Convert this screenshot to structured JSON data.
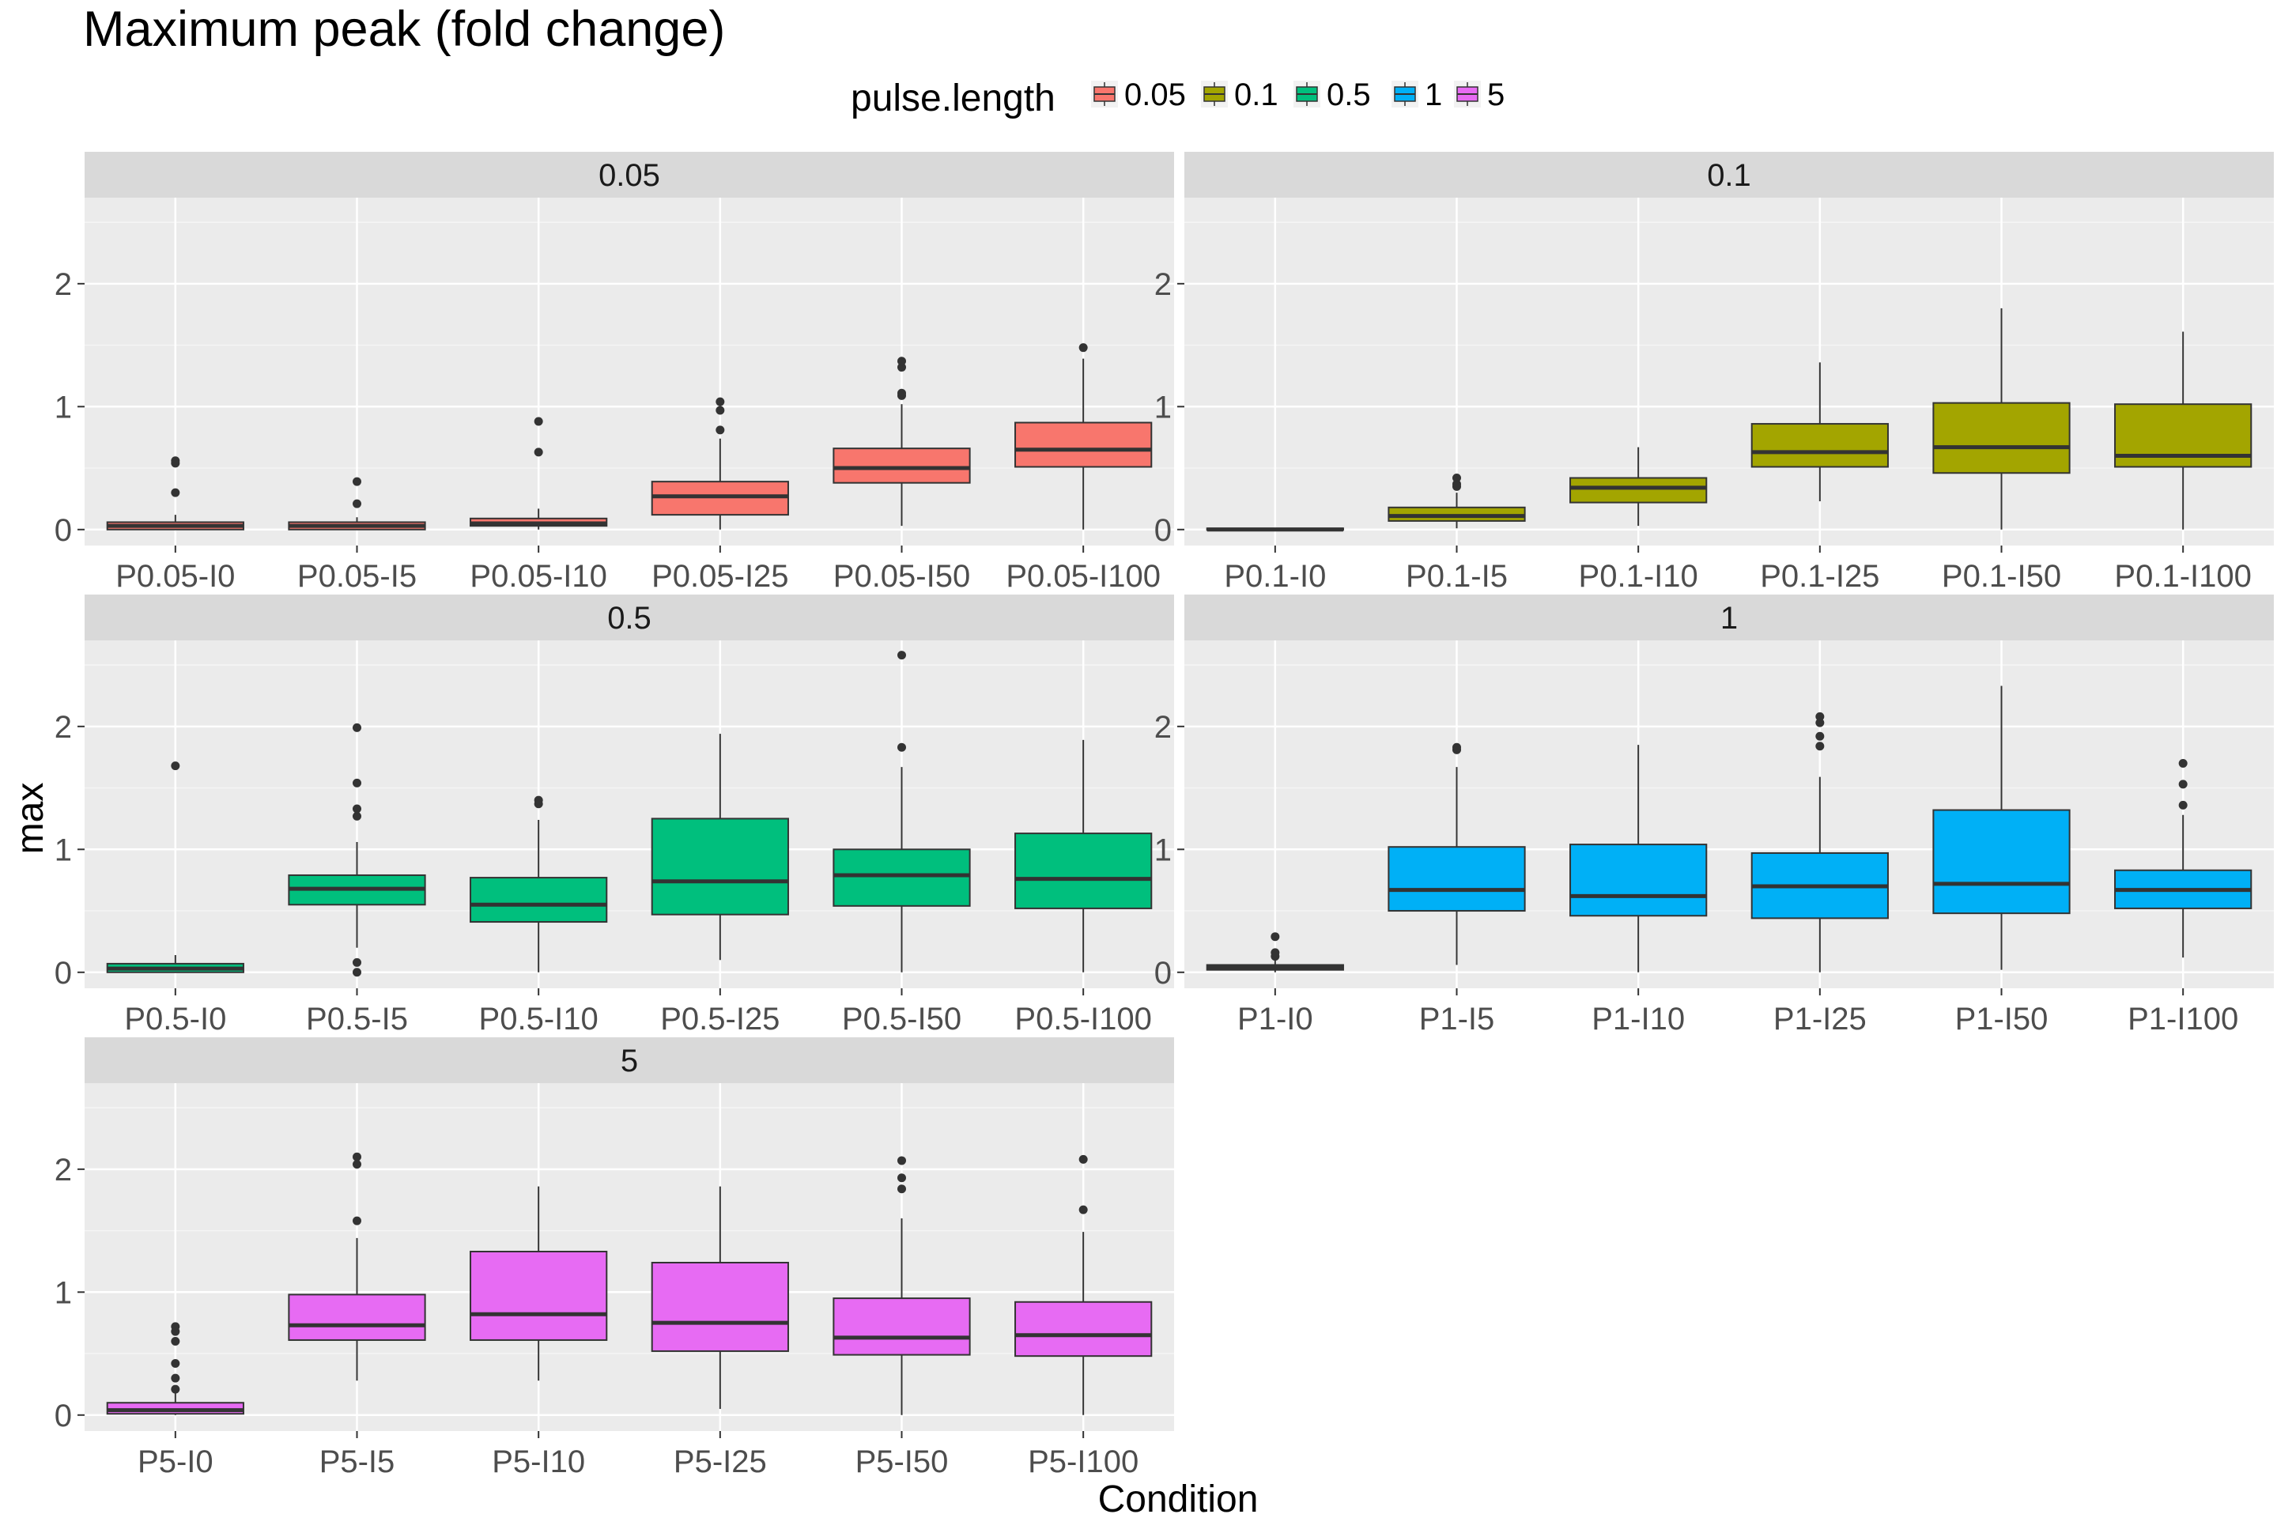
{
  "chart_data": {
    "type": "boxplot",
    "title": "Maximum peak (fold change)",
    "xlabel": "Condition",
    "ylabel": "max",
    "ylim": [
      -0.13,
      2.7
    ],
    "y_ticks": [
      0,
      1,
      2
    ],
    "grid": true,
    "legend": {
      "title": "pulse.length",
      "position": "top",
      "entries": [
        {
          "label": "0.05",
          "color": "#F8766D"
        },
        {
          "label": "0.1",
          "color": "#A3A500"
        },
        {
          "label": "0.5",
          "color": "#00BF7D"
        },
        {
          "label": "1",
          "color": "#00B0F6"
        },
        {
          "label": "5",
          "color": "#E76BF3"
        }
      ]
    },
    "facets": [
      {
        "strip": "0.05",
        "color": "#F8766D",
        "categories": [
          "P0.05-I0",
          "P0.05-I5",
          "P0.05-I10",
          "P0.05-I25",
          "P0.05-I50",
          "P0.05-I100"
        ],
        "boxes": [
          {
            "low": 0.0,
            "q1": 0.0,
            "median": 0.03,
            "q3": 0.06,
            "high": 0.12,
            "outliers": [
              0.3,
              0.54,
              0.56
            ]
          },
          {
            "low": 0.0,
            "q1": 0.0,
            "median": 0.03,
            "q3": 0.06,
            "high": 0.1,
            "outliers": [
              0.21,
              0.39
            ]
          },
          {
            "low": 0.0,
            "q1": 0.03,
            "median": 0.05,
            "q3": 0.09,
            "high": 0.17,
            "outliers": [
              0.63,
              0.88
            ]
          },
          {
            "low": 0.0,
            "q1": 0.12,
            "median": 0.27,
            "q3": 0.39,
            "high": 0.74,
            "outliers": [
              0.81,
              0.97,
              1.04
            ]
          },
          {
            "low": 0.03,
            "q1": 0.38,
            "median": 0.5,
            "q3": 0.66,
            "high": 1.02,
            "outliers": [
              1.09,
              1.11,
              1.32,
              1.37
            ]
          },
          {
            "low": 0.0,
            "q1": 0.51,
            "median": 0.65,
            "q3": 0.87,
            "high": 1.39,
            "outliers": [
              1.48
            ]
          }
        ]
      },
      {
        "strip": "0.1",
        "color": "#A3A500",
        "categories": [
          "P0.1-I0",
          "P0.1-I5",
          "P0.1-I10",
          "P0.1-I25",
          "P0.1-I50",
          "P0.1-I100"
        ],
        "boxes": [
          {
            "low": 0.0,
            "q1": 0.0,
            "median": 0.0,
            "q3": 0.01,
            "high": 0.01,
            "outliers": []
          },
          {
            "low": 0.01,
            "q1": 0.07,
            "median": 0.11,
            "q3": 0.18,
            "high": 0.3,
            "outliers": [
              0.35,
              0.37,
              0.42
            ]
          },
          {
            "low": 0.03,
            "q1": 0.22,
            "median": 0.34,
            "q3": 0.42,
            "high": 0.67,
            "outliers": []
          },
          {
            "low": 0.23,
            "q1": 0.51,
            "median": 0.63,
            "q3": 0.86,
            "high": 1.36,
            "outliers": []
          },
          {
            "low": 0.0,
            "q1": 0.46,
            "median": 0.67,
            "q3": 1.03,
            "high": 1.8,
            "outliers": []
          },
          {
            "low": 0.0,
            "q1": 0.51,
            "median": 0.6,
            "q3": 1.02,
            "high": 1.61,
            "outliers": []
          }
        ]
      },
      {
        "strip": "0.5",
        "color": "#00BF7D",
        "categories": [
          "P0.5-I0",
          "P0.5-I5",
          "P0.5-I10",
          "P0.5-I25",
          "P0.5-I50",
          "P0.5-I100"
        ],
        "boxes": [
          {
            "low": 0.0,
            "q1": 0.0,
            "median": 0.03,
            "q3": 0.07,
            "high": 0.14,
            "outliers": [
              1.68
            ]
          },
          {
            "low": 0.2,
            "q1": 0.55,
            "median": 0.68,
            "q3": 0.79,
            "high": 1.06,
            "outliers": [
              0.0,
              0.08,
              1.27,
              1.33,
              1.54,
              1.99
            ]
          },
          {
            "low": 0.0,
            "q1": 0.41,
            "median": 0.55,
            "q3": 0.77,
            "high": 1.24,
            "outliers": [
              1.37,
              1.4
            ]
          },
          {
            "low": 0.1,
            "q1": 0.47,
            "median": 0.74,
            "q3": 1.25,
            "high": 1.94,
            "outliers": []
          },
          {
            "low": 0.0,
            "q1": 0.54,
            "median": 0.79,
            "q3": 1.0,
            "high": 1.67,
            "outliers": [
              1.83,
              2.58
            ]
          },
          {
            "low": 0.0,
            "q1": 0.52,
            "median": 0.76,
            "q3": 1.13,
            "high": 1.89,
            "outliers": []
          }
        ]
      },
      {
        "strip": "1",
        "color": "#00B0F6",
        "categories": [
          "P1-I0",
          "P1-I5",
          "P1-I10",
          "P1-I25",
          "P1-I50",
          "P1-I100"
        ],
        "boxes": [
          {
            "low": 0.0,
            "q1": 0.02,
            "median": 0.04,
            "q3": 0.06,
            "high": 0.1,
            "outliers": [
              0.13,
              0.16,
              0.29
            ]
          },
          {
            "low": 0.06,
            "q1": 0.5,
            "median": 0.67,
            "q3": 1.02,
            "high": 1.67,
            "outliers": [
              1.81,
              1.83
            ]
          },
          {
            "low": 0.0,
            "q1": 0.46,
            "median": 0.62,
            "q3": 1.04,
            "high": 1.85,
            "outliers": []
          },
          {
            "low": 0.0,
            "q1": 0.44,
            "median": 0.7,
            "q3": 0.97,
            "high": 1.59,
            "outliers": [
              1.84,
              1.92,
              2.03,
              2.08
            ]
          },
          {
            "low": 0.02,
            "q1": 0.48,
            "median": 0.72,
            "q3": 1.32,
            "high": 2.33,
            "outliers": []
          },
          {
            "low": 0.12,
            "q1": 0.52,
            "median": 0.67,
            "q3": 0.83,
            "high": 1.28,
            "outliers": [
              1.36,
              1.53,
              1.7
            ]
          }
        ]
      },
      {
        "strip": "5",
        "color": "#E76BF3",
        "categories": [
          "P5-I0",
          "P5-I5",
          "P5-I10",
          "P5-I25",
          "P5-I50",
          "P5-I100"
        ],
        "boxes": [
          {
            "low": 0.0,
            "q1": 0.01,
            "median": 0.04,
            "q3": 0.1,
            "high": 0.2,
            "outliers": [
              0.21,
              0.3,
              0.42,
              0.6,
              0.68,
              0.72
            ]
          },
          {
            "low": 0.28,
            "q1": 0.61,
            "median": 0.73,
            "q3": 0.98,
            "high": 1.44,
            "outliers": [
              1.58,
              2.04,
              2.1
            ]
          },
          {
            "low": 0.28,
            "q1": 0.61,
            "median": 0.82,
            "q3": 1.33,
            "high": 1.86,
            "outliers": []
          },
          {
            "low": 0.05,
            "q1": 0.52,
            "median": 0.75,
            "q3": 1.24,
            "high": 1.86,
            "outliers": []
          },
          {
            "low": 0.0,
            "q1": 0.49,
            "median": 0.63,
            "q3": 0.95,
            "high": 1.6,
            "outliers": [
              1.84,
              1.93,
              2.07
            ]
          },
          {
            "low": 0.0,
            "q1": 0.48,
            "median": 0.65,
            "q3": 0.92,
            "high": 1.49,
            "outliers": [
              1.67,
              2.08
            ]
          }
        ]
      }
    ]
  }
}
